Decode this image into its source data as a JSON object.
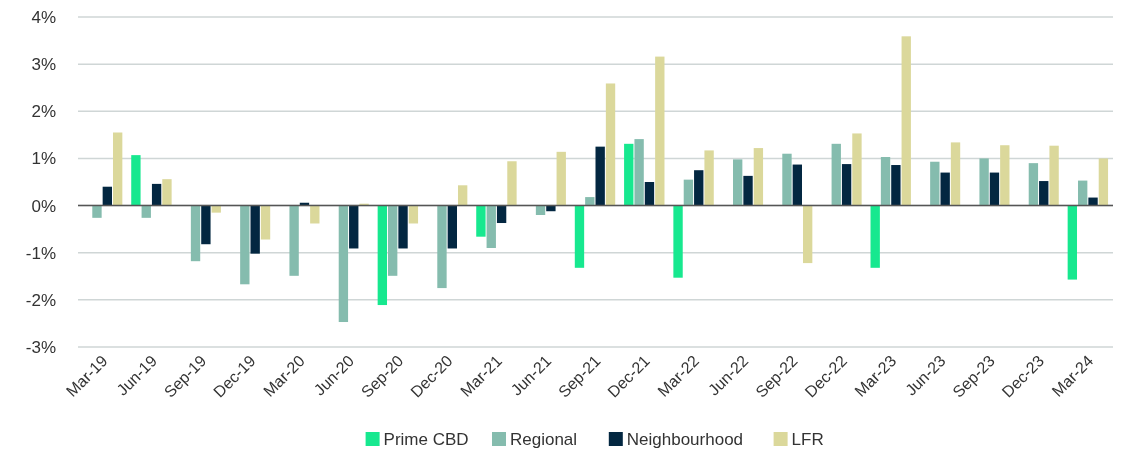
{
  "chart_data": {
    "type": "bar",
    "categories": [
      "Mar-19",
      "Jun-19",
      "Sep-19",
      "Dec-19",
      "Mar-20",
      "Jun-20",
      "Sep-20",
      "Dec-20",
      "Mar-21",
      "Jun-21",
      "Sep-21",
      "Dec-21",
      "Mar-22",
      "Jun-22",
      "Sep-22",
      "Dec-22",
      "Mar-23",
      "Jun-23",
      "Sep-23",
      "Dec-23",
      "Mar-24"
    ],
    "series": [
      {
        "name": "Prime CBD",
        "color": "#17e88f",
        "values": [
          null,
          1.07,
          null,
          null,
          null,
          null,
          -2.11,
          null,
          -0.66,
          null,
          -1.32,
          1.31,
          -1.53,
          null,
          null,
          null,
          -1.32,
          null,
          null,
          null,
          -1.57
        ]
      },
      {
        "name": "Regional",
        "color": "#85bcae",
        "values": [
          -0.26,
          -0.26,
          -1.18,
          -1.67,
          -1.49,
          -2.47,
          -1.49,
          -1.75,
          -0.9,
          -0.2,
          0.18,
          1.41,
          0.55,
          0.98,
          1.1,
          1.31,
          1.03,
          0.93,
          1.0,
          0.9,
          0.53
        ]
      },
      {
        "name": "Neighbourhood",
        "color": "#032741",
        "values": [
          0.4,
          0.46,
          -0.82,
          -1.02,
          0.06,
          -0.91,
          -0.91,
          -0.91,
          -0.37,
          -0.12,
          1.25,
          0.5,
          0.75,
          0.63,
          0.87,
          0.88,
          0.86,
          0.7,
          0.7,
          0.52,
          0.17
        ]
      },
      {
        "name": "LFR",
        "color": "#dbd89b",
        "values": [
          1.55,
          0.56,
          -0.15,
          -0.72,
          -0.38,
          0.04,
          -0.38,
          0.43,
          0.94,
          1.14,
          2.59,
          3.16,
          1.17,
          1.22,
          -1.22,
          1.53,
          3.59,
          1.34,
          1.28,
          1.27,
          1.0
        ]
      }
    ],
    "ylim": [
      -3,
      4
    ],
    "yticks": [
      {
        "value": -3,
        "label": "-3%"
      },
      {
        "value": -2,
        "label": "-2%"
      },
      {
        "value": -1,
        "label": "-1%"
      },
      {
        "value": 0,
        "label": "0%"
      },
      {
        "value": 1,
        "label": "1%"
      },
      {
        "value": 2,
        "label": "2%"
      },
      {
        "value": 3,
        "label": "3%"
      },
      {
        "value": 4,
        "label": "4%"
      }
    ],
    "grid": "y",
    "legend": "bottom"
  }
}
